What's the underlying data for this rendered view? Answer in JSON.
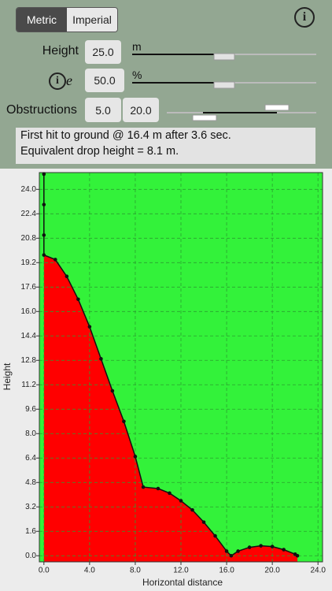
{
  "controls": {
    "units": [
      "Metric",
      "Imperial"
    ],
    "height": {
      "label": "Height",
      "value": "25.0",
      "unit": "m"
    },
    "e": {
      "label": "e",
      "value": "50.0",
      "unit": "%"
    },
    "obstructions": {
      "label": "Obstructions",
      "values": [
        "5.0",
        "20.0"
      ]
    }
  },
  "info": [
    "First hit to ground @ 16.4 m after 3.6 sec.",
    "Equivalent drop height = 8.1 m."
  ],
  "chart_data": {
    "type": "line",
    "xlabel": "Horizontal distance",
    "ylabel": "Height",
    "x": [
      0,
      0,
      0,
      0,
      1,
      2,
      3,
      4,
      5,
      6,
      7,
      8,
      8.7,
      10,
      11,
      12,
      13,
      14,
      15,
      16,
      16.4,
      17,
      18,
      19,
      20,
      21,
      22,
      22.2
    ],
    "series": [
      {
        "color": "#111111",
        "values": [
          25,
          23,
          21,
          19.7,
          19.4,
          18.3,
          16.8,
          15.0,
          12.9,
          10.8,
          8.8,
          6.5,
          4.5,
          4.4,
          4.1,
          3.6,
          3.0,
          2.2,
          1.3,
          0.3,
          0,
          0.3,
          0.55,
          0.65,
          0.6,
          0.4,
          0.1,
          0
        ]
      }
    ],
    "fill_below": "#ff0000",
    "fill_above": "#33f23a",
    "xlim": [
      -0.4,
      24.4
    ],
    "ylim": [
      -0.4,
      25.1
    ],
    "xticks": [
      {
        "value": 0,
        "label": "0.0"
      },
      {
        "value": 4,
        "label": "4.0"
      },
      {
        "value": 8,
        "label": "8.0"
      },
      {
        "value": 12,
        "label": "12.0"
      },
      {
        "value": 16,
        "label": "16.0"
      },
      {
        "value": 20,
        "label": "20.0"
      },
      {
        "value": 24,
        "label": "24.0"
      }
    ],
    "yticks": [
      {
        "value": 0,
        "label": "0.0"
      },
      {
        "value": 1.6,
        "label": "1.6"
      },
      {
        "value": 3.2,
        "label": "3.2"
      },
      {
        "value": 4.8,
        "label": "4.8"
      },
      {
        "value": 6.4,
        "label": "6.4"
      },
      {
        "value": 8,
        "label": "8.0"
      },
      {
        "value": 9.6,
        "label": "9.6"
      },
      {
        "value": 11.2,
        "label": "11.2"
      },
      {
        "value": 12.8,
        "label": "12.8"
      },
      {
        "value": 14.4,
        "label": "14.4"
      },
      {
        "value": 16,
        "label": "16.0"
      },
      {
        "value": 17.6,
        "label": "17.6"
      },
      {
        "value": 19.2,
        "label": "19.2"
      },
      {
        "value": 20.8,
        "label": "20.8"
      },
      {
        "value": 22.4,
        "label": "22.4"
      },
      {
        "value": 24,
        "label": "24.0"
      }
    ],
    "grid": true
  }
}
